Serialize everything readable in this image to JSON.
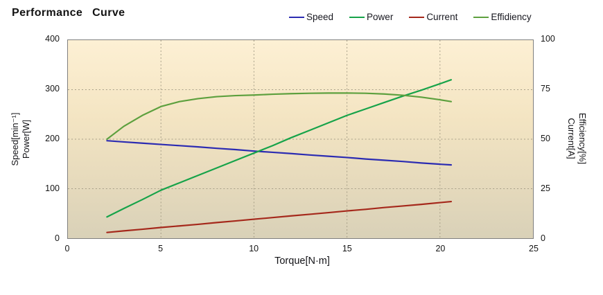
{
  "title": "Performance Curve",
  "legend": [
    {
      "label": "Speed",
      "color": "#2b2bb2"
    },
    {
      "label": "Power",
      "color": "#16a349"
    },
    {
      "label": "Current",
      "color": "#a5281b"
    },
    {
      "label": "Effidiency",
      "color": "#5da03e"
    }
  ],
  "chart_data": {
    "type": "line",
    "title": "Performance Curve",
    "xlabel": "Torque[N·m]",
    "ylabel_left": [
      "Speed[min⁻¹]",
      "Power[W]"
    ],
    "ylabel_right": [
      "Current[A]",
      "Efficiency[%]"
    ],
    "xlim": [
      0,
      25
    ],
    "ylim_left": [
      0,
      400
    ],
    "ylim_right": [
      0,
      100
    ],
    "xticks": [
      0,
      5,
      10,
      15,
      20,
      25
    ],
    "yticks_left": [
      0,
      100,
      200,
      300,
      400
    ],
    "yticks_right": [
      0,
      25,
      50,
      75,
      100
    ],
    "grid": true,
    "legend_position": "top-right",
    "x": [
      2.1,
      3,
      4,
      5,
      6,
      7,
      8,
      9,
      10,
      11,
      12,
      13,
      14,
      15,
      16,
      17,
      18,
      19,
      20,
      20.6
    ],
    "series": [
      {
        "name": "Speed",
        "axis": "left",
        "unit": "min⁻¹",
        "color": "#2b2bb2",
        "values": [
          197,
          194.5,
          192,
          189.5,
          187,
          184.5,
          181.5,
          179,
          176,
          173.5,
          171,
          168,
          165.5,
          163,
          160,
          157.5,
          155,
          152,
          149.5,
          148
        ]
      },
      {
        "name": "Power",
        "axis": "left",
        "unit": "W",
        "color": "#16a349",
        "values": [
          43,
          60,
          78,
          97,
          112,
          127,
          142,
          157,
          172,
          187,
          203,
          218,
          233,
          248,
          261,
          274,
          287,
          299,
          312,
          320
        ]
      },
      {
        "name": "Current",
        "axis": "right",
        "unit": "A",
        "color": "#a5281b",
        "values": [
          2.9,
          3.7,
          4.5,
          5.4,
          6.2,
          7.0,
          7.9,
          8.7,
          9.6,
          10.4,
          11.3,
          12.1,
          12.9,
          13.8,
          14.6,
          15.5,
          16.3,
          17.1,
          18.0,
          18.5
        ]
      },
      {
        "name": "Efficiency",
        "axis": "right",
        "unit": "%",
        "color": "#5da03e",
        "values": [
          50,
          56.5,
          62,
          66.5,
          69,
          70.5,
          71.5,
          72,
          72.3,
          72.7,
          73,
          73.2,
          73.3,
          73.3,
          73.2,
          72.8,
          72.2,
          71.2,
          69.9,
          69
        ]
      }
    ],
    "style": {
      "plot_bg_top": "#fdf0d4",
      "plot_bg_bottom": "#d9d1b8",
      "grid_color": "#a69e87",
      "border_color": "#7f7f7f"
    }
  }
}
